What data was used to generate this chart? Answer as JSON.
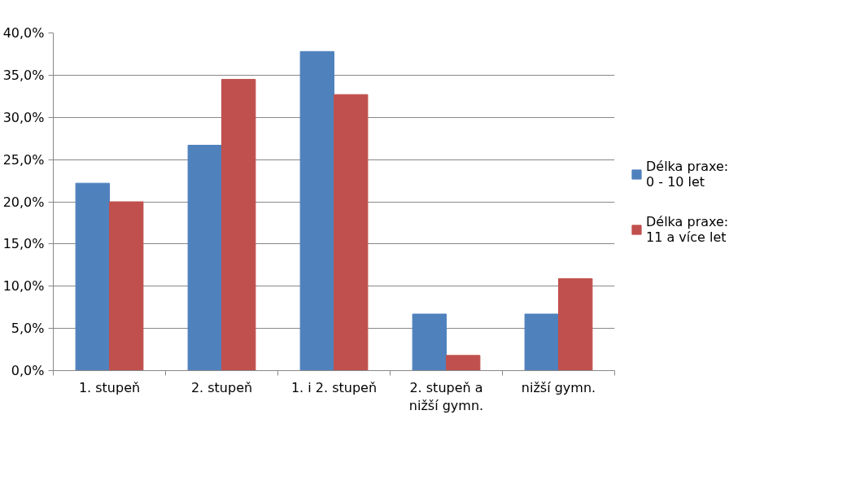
{
  "chart_data": {
    "type": "bar",
    "categories": [
      "1. stupeň",
      "2. stupeň",
      "1. i 2. stupeň",
      "2. stupeň a\nnižší gymn.",
      "nižší gymn."
    ],
    "series": [
      {
        "name": "Délka praxe:\n0 - 10 let",
        "color": "#4f81bd",
        "values": [
          22.2,
          26.7,
          37.8,
          6.7,
          6.7
        ]
      },
      {
        "name": "Délka praxe:\n11 a více let",
        "color": "#c0504d",
        "values": [
          20.0,
          34.5,
          32.7,
          1.8,
          10.9
        ]
      }
    ],
    "ylim": [
      0,
      40
    ],
    "yticks": [
      {
        "value": 0,
        "label": "0,0%"
      },
      {
        "value": 5,
        "label": "5,0%"
      },
      {
        "value": 10,
        "label": "10,0%"
      },
      {
        "value": 15,
        "label": "15,0%"
      },
      {
        "value": 20,
        "label": "20,0%"
      },
      {
        "value": 25,
        "label": "25,0%"
      },
      {
        "value": 30,
        "label": "30,0%"
      },
      {
        "value": 35,
        "label": "35,0%"
      },
      {
        "value": 40,
        "label": "40,0%"
      }
    ],
    "grid": "y",
    "legend": "right"
  }
}
